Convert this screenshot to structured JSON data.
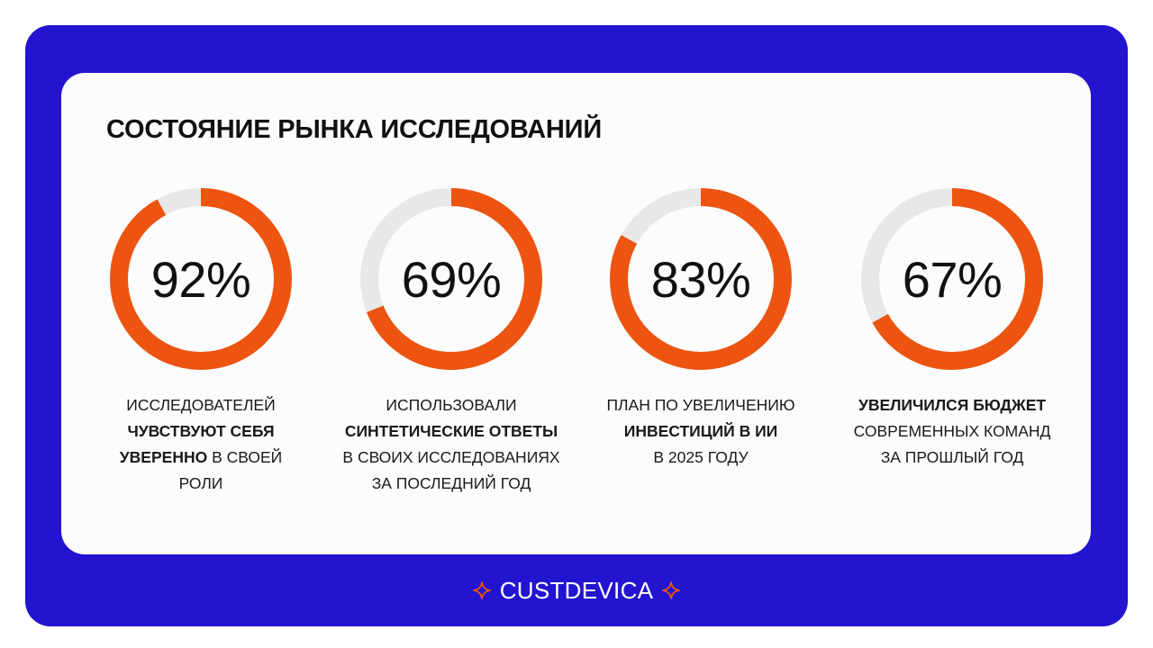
{
  "title": "СОСТОЯНИЕ РЫНКА ИССЛЕДОВАНИЙ",
  "colors": {
    "background": "#2214cf",
    "card": "#fcfcfc",
    "accent": "#ec5410",
    "track": "#e8e8e8"
  },
  "chart_data": [
    {
      "type": "pie",
      "variant": "donut",
      "value": 92,
      "label": "92%",
      "caption": [
        [
          {
            "text": "ИССЛЕДОВАТЕЛЕЙ",
            "bold": false
          }
        ],
        [
          {
            "text": "ЧУВСТВУЮТ СЕБЯ",
            "bold": true
          }
        ],
        [
          {
            "text": "УВЕРЕННО",
            "bold": true
          },
          {
            "text": " В СВОЕЙ",
            "bold": false
          }
        ],
        [
          {
            "text": "РОЛИ",
            "bold": false
          }
        ]
      ]
    },
    {
      "type": "pie",
      "variant": "donut",
      "value": 69,
      "label": "69%",
      "caption": [
        [
          {
            "text": "ИСПОЛЬЗОВАЛИ",
            "bold": false
          }
        ],
        [
          {
            "text": "СИНТЕТИЧЕСКИЕ ОТВЕТЫ",
            "bold": true
          }
        ],
        [
          {
            "text": "В СВОИХ ИССЛЕДОВАНИЯХ",
            "bold": false
          }
        ],
        [
          {
            "text": "ЗА ПОСЛЕДНИЙ ГОД",
            "bold": false
          }
        ]
      ]
    },
    {
      "type": "pie",
      "variant": "donut",
      "value": 83,
      "label": "83%",
      "caption": [
        [
          {
            "text": "ПЛАН ПО УВЕЛИЧЕНИЮ",
            "bold": false
          }
        ],
        [
          {
            "text": "ИНВЕСТИЦИЙ В ИИ",
            "bold": true
          }
        ],
        [
          {
            "text": "В 2025 ГОДУ",
            "bold": false
          }
        ]
      ]
    },
    {
      "type": "pie",
      "variant": "donut",
      "value": 67,
      "label": "67%",
      "caption": [
        [
          {
            "text": "УВЕЛИЧИЛСЯ БЮДЖЕТ",
            "bold": true
          }
        ],
        [
          {
            "text": "СОВРЕМЕННЫХ КОМАНД",
            "bold": false
          }
        ],
        [
          {
            "text": "ЗА ПРОШЛЫЙ ГОД",
            "bold": false
          }
        ]
      ]
    }
  ],
  "footer": {
    "brand": "CUSTDEVICA",
    "icon_left": "sparkle-icon",
    "icon_right": "sparkle-icon"
  }
}
